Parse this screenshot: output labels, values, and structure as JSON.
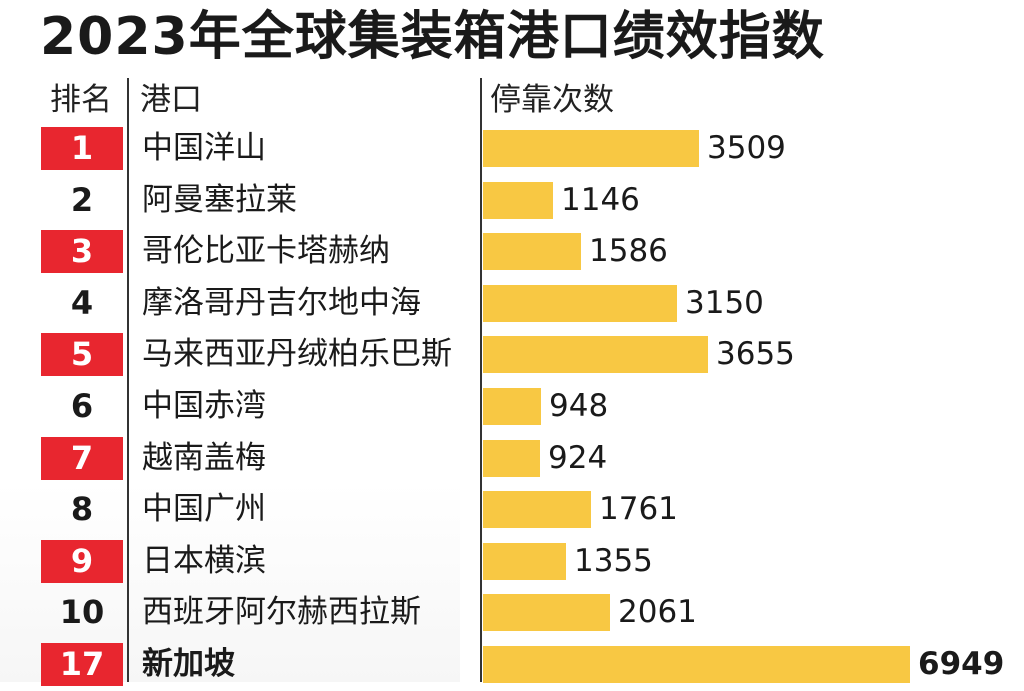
{
  "chart_data": {
    "type": "bar",
    "title": "2023年全球集装箱港口绩效指数",
    "columns": {
      "rank": "排名",
      "port": "港口",
      "calls": "停靠次数"
    },
    "rows": [
      {
        "rank": "1",
        "port": "中国洋山",
        "calls": 3509,
        "highlight": true,
        "bold": false
      },
      {
        "rank": "2",
        "port": "阿曼塞拉莱",
        "calls": 1146,
        "highlight": false,
        "bold": false
      },
      {
        "rank": "3",
        "port": "哥伦比亚卡塔赫纳",
        "calls": 1586,
        "highlight": true,
        "bold": false
      },
      {
        "rank": "4",
        "port": "摩洛哥丹吉尔地中海",
        "calls": 3150,
        "highlight": false,
        "bold": false
      },
      {
        "rank": "5",
        "port": "马来西亚丹绒柏乐巴斯",
        "calls": 3655,
        "highlight": true,
        "bold": false
      },
      {
        "rank": "6",
        "port": "中国赤湾",
        "calls": 948,
        "highlight": false,
        "bold": false
      },
      {
        "rank": "7",
        "port": "越南盖梅",
        "calls": 924,
        "highlight": true,
        "bold": false
      },
      {
        "rank": "8",
        "port": "中国广州",
        "calls": 1761,
        "highlight": false,
        "bold": false
      },
      {
        "rank": "9",
        "port": "日本横滨",
        "calls": 1355,
        "highlight": true,
        "bold": false
      },
      {
        "rank": "10",
        "port": "西班牙阿尔赫西拉斯",
        "calls": 2061,
        "highlight": false,
        "bold": false
      },
      {
        "rank": "17",
        "port": "新加坡",
        "calls": 6949,
        "highlight": true,
        "bold": true
      }
    ],
    "xlim": [
      0,
      7000
    ]
  },
  "colors": {
    "rank_highlight": "#e8262f",
    "bar": "#f8c843",
    "text": "#1a1a1a"
  }
}
